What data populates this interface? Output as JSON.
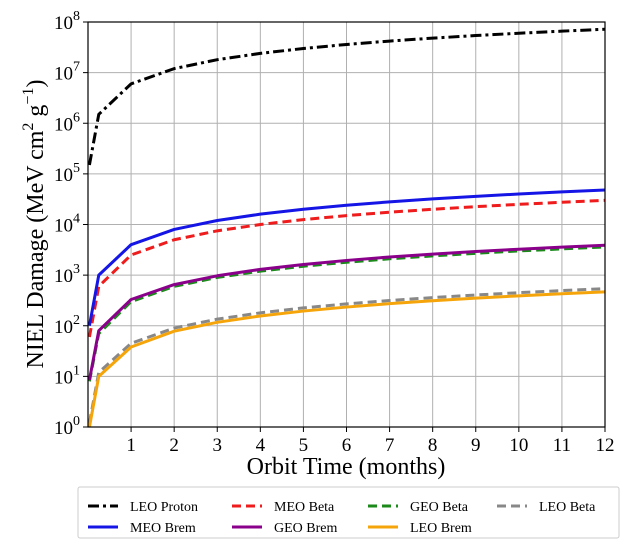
{
  "chart_data": {
    "type": "line",
    "title": "",
    "xlabel": "Orbit Time (months)",
    "ylabel": "NIEL Damage (MeV cm",
    "ylabel_sup1": "2",
    "ylabel_mid": " g",
    "ylabel_sup2": "−1",
    "ylabel_end": ")",
    "xlim": [
      0,
      12
    ],
    "ylim_log10": [
      0,
      8
    ],
    "yscale": "log",
    "grid": true,
    "legend_position": "bottom-outside",
    "x_ticks": [
      1,
      2,
      3,
      4,
      5,
      6,
      7,
      8,
      9,
      10,
      11,
      12
    ],
    "y_ticks": [
      {
        "base": "10",
        "exp": "0",
        "value": 1
      },
      {
        "base": "10",
        "exp": "1",
        "value": 10
      },
      {
        "base": "10",
        "exp": "2",
        "value": 100
      },
      {
        "base": "10",
        "exp": "3",
        "value": 1000
      },
      {
        "base": "10",
        "exp": "4",
        "value": 10000
      },
      {
        "base": "10",
        "exp": "5",
        "value": 100000
      },
      {
        "base": "10",
        "exp": "6",
        "value": 1000000
      },
      {
        "base": "10",
        "exp": "7",
        "value": 10000000
      },
      {
        "base": "10",
        "exp": "8",
        "value": 100000000
      }
    ],
    "x": [
      0.033,
      0.25,
      1,
      2,
      3,
      4,
      5,
      6,
      7,
      8,
      9,
      10,
      11,
      12
    ],
    "series": [
      {
        "name": "LEO Proton",
        "color": "#000000",
        "dash": "dashdot",
        "values": [
          150000,
          1500000,
          6000000,
          12000000,
          18000000,
          24000000,
          30000000,
          36000000,
          42000000,
          48000000,
          54000000,
          60000000,
          66000000,
          72000000
        ]
      },
      {
        "name": "MEO Beta",
        "color": "#ee1c1c",
        "dash": "dashed",
        "values": [
          60,
          600,
          2500,
          5000,
          7500,
          10000,
          12500,
          15000,
          17500,
          20000,
          22500,
          25000,
          27500,
          30000
        ]
      },
      {
        "name": "GEO Beta",
        "color": "#1b8a1b",
        "dash": "dashed",
        "values": [
          8,
          70,
          300,
          600,
          900,
          1200,
          1500,
          1800,
          2100,
          2400,
          2700,
          3000,
          3300,
          3600
        ]
      },
      {
        "name": "LEO Beta",
        "color": "#888888",
        "dash": "dashed",
        "values": [
          1.2,
          12,
          45,
          90,
          135,
          180,
          225,
          270,
          315,
          360,
          405,
          450,
          495,
          540
        ]
      },
      {
        "name": "MEO Brem",
        "color": "#1515e6",
        "dash": "solid",
        "values": [
          100,
          1000,
          4000,
          8000,
          12000,
          16000,
          20000,
          24000,
          28000,
          32000,
          36000,
          40000,
          44000,
          48000
        ]
      },
      {
        "name": "GEO Brem",
        "color": "#8b008b",
        "dash": "solid",
        "values": [
          8.5,
          80,
          330,
          650,
          970,
          1300,
          1620,
          1950,
          2280,
          2600,
          2930,
          3250,
          3580,
          3900
        ]
      },
      {
        "name": "LEO Brem",
        "color": "#f5a50a",
        "dash": "solid",
        "values": [
          1,
          10,
          38,
          78,
          117,
          156,
          195,
          234,
          273,
          312,
          351,
          390,
          429,
          468
        ]
      }
    ]
  }
}
